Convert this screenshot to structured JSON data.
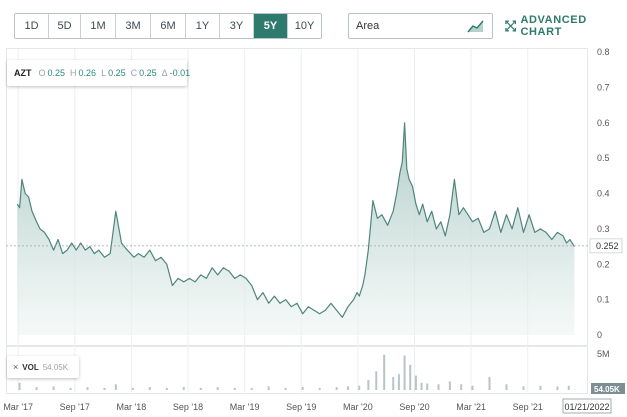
{
  "toolbar": {
    "ranges": [
      {
        "label": "1D",
        "active": false
      },
      {
        "label": "5D",
        "active": false
      },
      {
        "label": "1M",
        "active": false
      },
      {
        "label": "3M",
        "active": false
      },
      {
        "label": "6M",
        "active": false
      },
      {
        "label": "1Y",
        "active": false
      },
      {
        "label": "3Y",
        "active": false
      },
      {
        "label": "5Y",
        "active": true
      },
      {
        "label": "10Y",
        "active": false
      }
    ],
    "chart_type": "Area",
    "advanced_chart_label": "ADVANCED CHART"
  },
  "legend": {
    "symbol": "AZT",
    "open_key": "O",
    "open": "0.25",
    "high_key": "H",
    "high": "0.26",
    "low_key": "L",
    "low": "0.25",
    "close_key": "C",
    "close": "0.25",
    "change_key": "Δ",
    "change": "-0.01"
  },
  "volume": {
    "close_icon": "×",
    "label": "VOL",
    "value": "54.05K",
    "axis_top_label": "5M",
    "axis_badge": "54.05K"
  },
  "current_price_label": "0.252",
  "current_date_label": "01/21/2022",
  "colors": {
    "accent": "#2e7a6d",
    "line": "#4f857b",
    "area_top": "#9fc2ba",
    "area_bottom": "#eef5f3",
    "volume_bar": "#b8c4c8",
    "badge": "#7d8f95"
  },
  "chart_data": {
    "type": "area",
    "x_tick_labels": [
      "Mar '17",
      "Sep '17",
      "Mar '18",
      "Sep '18",
      "Mar '19",
      "Sep '19",
      "Mar '20",
      "Sep '20",
      "Mar '21",
      "Sep '21"
    ],
    "y_ticks": [
      0,
      0.1,
      0.2,
      0.3,
      0.4,
      0.5,
      0.6,
      0.7,
      0.8
    ],
    "ylim": [
      0,
      0.8
    ],
    "xlim": [
      2017.08,
      2022.22
    ],
    "grid": "vertical",
    "current_price_line": 0.252,
    "series": [
      {
        "x": [
          2017.18,
          2017.2,
          2017.22,
          2017.25,
          2017.28,
          2017.31,
          2017.35,
          2017.38,
          2017.42,
          2017.46,
          2017.5,
          2017.54,
          2017.58,
          2017.62,
          2017.66,
          2017.7,
          2017.74,
          2017.78,
          2017.82,
          2017.86,
          2017.9,
          2017.95,
          2018.0,
          2018.05,
          2018.1,
          2018.15,
          2018.18,
          2018.21,
          2018.25,
          2018.3,
          2018.35,
          2018.4,
          2018.45,
          2018.5,
          2018.55,
          2018.6,
          2018.65,
          2018.7,
          2018.75,
          2018.8,
          2018.85,
          2018.9,
          2018.95,
          2019.0,
          2019.05,
          2019.1,
          2019.15,
          2019.2,
          2019.25,
          2019.3,
          2019.35,
          2019.4,
          2019.45,
          2019.5,
          2019.55,
          2019.6,
          2019.65,
          2019.7,
          2019.75,
          2019.8,
          2019.85,
          2019.9,
          2019.95,
          2020.0,
          2020.05,
          2020.1,
          2020.15,
          2020.18,
          2020.2,
          2020.23,
          2020.25,
          2020.28,
          2020.32,
          2020.36,
          2020.4,
          2020.45,
          2020.5,
          2020.53,
          2020.56,
          2020.58,
          2020.6,
          2020.62,
          2020.64,
          2020.67,
          2020.7,
          2020.73,
          2020.76,
          2020.8,
          2020.84,
          2020.88,
          2020.92,
          2020.96,
          2021.0,
          2021.04,
          2021.08,
          2021.12,
          2021.16,
          2021.2,
          2021.25,
          2021.3,
          2021.35,
          2021.4,
          2021.45,
          2021.5,
          2021.55,
          2021.6,
          2021.65,
          2021.7,
          2021.75,
          2021.8,
          2021.85,
          2021.9,
          2021.95,
          2022.0,
          2022.03,
          2022.06,
          2022.1
        ],
        "y": [
          0.37,
          0.36,
          0.44,
          0.4,
          0.39,
          0.35,
          0.32,
          0.3,
          0.29,
          0.27,
          0.24,
          0.27,
          0.23,
          0.24,
          0.26,
          0.24,
          0.26,
          0.24,
          0.25,
          0.23,
          0.24,
          0.22,
          0.23,
          0.35,
          0.26,
          0.24,
          0.23,
          0.22,
          0.23,
          0.22,
          0.24,
          0.21,
          0.22,
          0.2,
          0.14,
          0.16,
          0.15,
          0.16,
          0.15,
          0.17,
          0.16,
          0.19,
          0.17,
          0.19,
          0.18,
          0.16,
          0.17,
          0.16,
          0.14,
          0.1,
          0.12,
          0.09,
          0.11,
          0.09,
          0.1,
          0.08,
          0.09,
          0.06,
          0.08,
          0.07,
          0.06,
          0.07,
          0.09,
          0.07,
          0.05,
          0.08,
          0.1,
          0.12,
          0.11,
          0.14,
          0.17,
          0.24,
          0.38,
          0.33,
          0.34,
          0.31,
          0.35,
          0.4,
          0.46,
          0.49,
          0.6,
          0.47,
          0.44,
          0.42,
          0.37,
          0.34,
          0.37,
          0.32,
          0.35,
          0.3,
          0.32,
          0.28,
          0.34,
          0.44,
          0.34,
          0.36,
          0.34,
          0.32,
          0.33,
          0.29,
          0.3,
          0.35,
          0.29,
          0.34,
          0.3,
          0.36,
          0.29,
          0.34,
          0.29,
          0.3,
          0.29,
          0.27,
          0.29,
          0.28,
          0.26,
          0.27,
          0.25
        ]
      }
    ],
    "volume": {
      "x": [
        2017.2,
        2017.35,
        2017.5,
        2017.65,
        2017.8,
        2017.95,
        2018.05,
        2018.2,
        2018.35,
        2018.5,
        2018.65,
        2018.8,
        2018.95,
        2019.1,
        2019.25,
        2019.4,
        2019.55,
        2019.7,
        2019.85,
        2020.0,
        2020.1,
        2020.2,
        2020.28,
        2020.35,
        2020.42,
        2020.5,
        2020.55,
        2020.6,
        2020.65,
        2020.7,
        2020.75,
        2020.8,
        2020.9,
        2021.0,
        2021.1,
        2021.2,
        2021.35,
        2021.5,
        2021.65,
        2021.8,
        2021.95,
        2022.05,
        2022.1
      ],
      "y": [
        1.0,
        0.4,
        0.5,
        0.3,
        0.4,
        0.3,
        0.8,
        0.3,
        0.4,
        0.3,
        0.4,
        0.3,
        0.4,
        0.3,
        0.3,
        0.5,
        0.3,
        0.4,
        0.3,
        0.4,
        0.5,
        0.6,
        1.4,
        2.6,
        4.9,
        1.8,
        2.2,
        4.8,
        3.5,
        2.0,
        1.0,
        0.9,
        0.8,
        1.2,
        0.8,
        0.6,
        1.8,
        0.8,
        0.5,
        0.6,
        0.5,
        0.6,
        0.05
      ],
      "ylim": [
        0,
        5
      ]
    }
  }
}
